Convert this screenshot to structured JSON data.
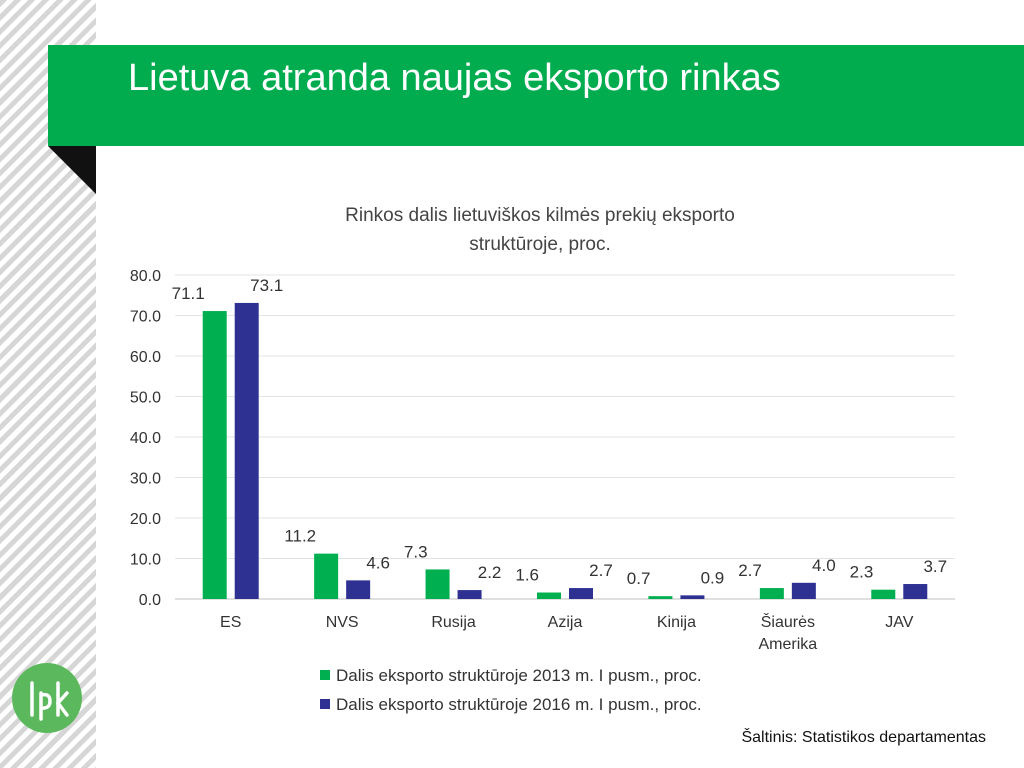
{
  "slide": {
    "title": "Lietuva atranda naujas eksporto rinkas",
    "source": "Šaltinis: Statistikos departamentas"
  },
  "logo": {
    "icon": "lpk-logo-icon"
  },
  "colors": {
    "banner": "#00ac4e",
    "series_2013": "#00b050",
    "series_2016": "#2e3192"
  },
  "chart_data": {
    "type": "bar",
    "title": [
      "Rinkos dalis lietuviškos kilmės prekių eksporto",
      "struktūroje, proc."
    ],
    "categories": [
      [
        "ES"
      ],
      [
        "NVS"
      ],
      [
        "Rusija"
      ],
      [
        "Azija"
      ],
      [
        "Kinija"
      ],
      [
        "Šiaurės",
        "Amerika"
      ],
      [
        "JAV"
      ]
    ],
    "series": [
      {
        "name": "Dalis eksporto struktūroje 2013 m. I pusm., proc.",
        "color": "#00b050",
        "values": [
          71.1,
          11.2,
          7.3,
          1.6,
          0.7,
          2.7,
          2.3
        ]
      },
      {
        "name": "Dalis eksporto struktūroje 2016 m. I pusm., proc.",
        "color": "#2e3192",
        "values": [
          73.1,
          4.6,
          2.2,
          2.7,
          0.9,
          4.0,
          3.7
        ]
      }
    ],
    "yticks": [
      "0.0",
      "10.0",
      "20.0",
      "30.0",
      "40.0",
      "50.0",
      "60.0",
      "70.0",
      "80.0"
    ],
    "ylim": [
      0,
      80
    ],
    "grid": true,
    "legend": "bottom"
  }
}
